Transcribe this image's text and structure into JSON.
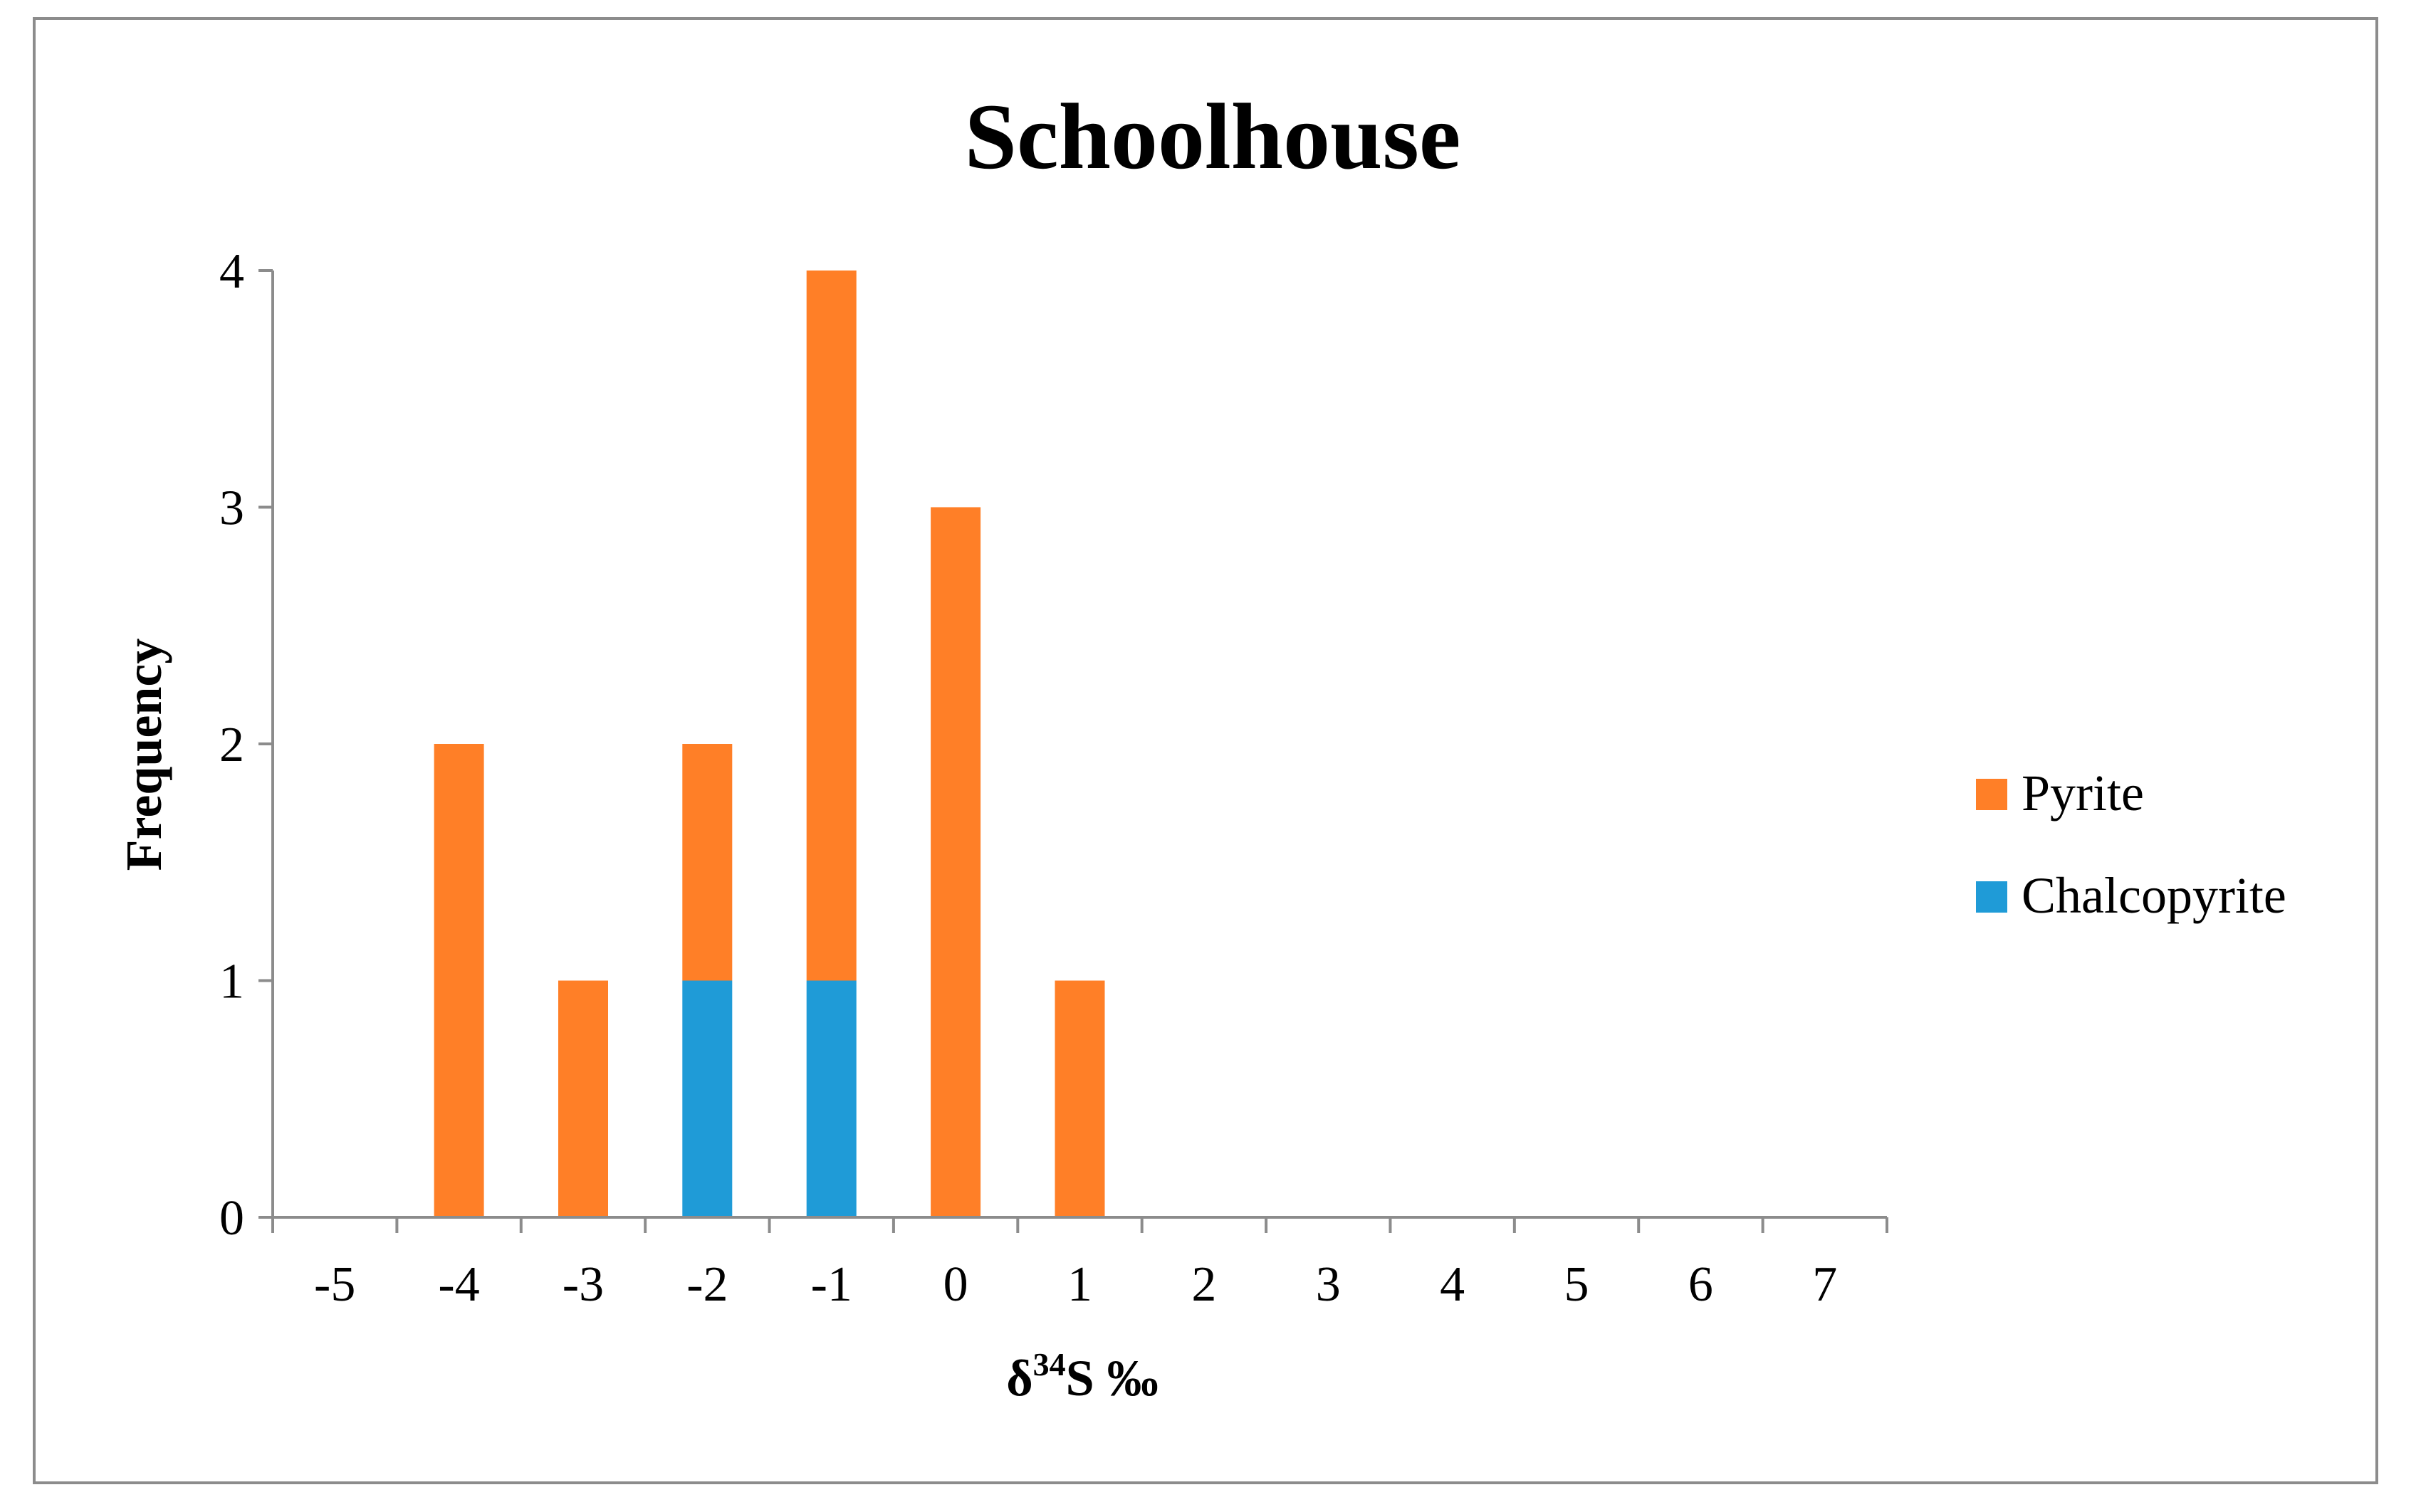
{
  "chart_data": {
    "type": "bar",
    "stacked": true,
    "title": "Schoolhouse",
    "xlabel_main": "δ",
    "xlabel_sup": "34",
    "xlabel_tail": "S ‰",
    "ylabel": "Frequency",
    "categories": [
      "-5",
      "-4",
      "-3",
      "-2",
      "-1",
      "0",
      "1",
      "2",
      "3",
      "4",
      "5",
      "6",
      "7"
    ],
    "series": [
      {
        "name": "Chalcopyrite",
        "color": "#1f9bd7",
        "values": [
          0,
          0,
          0,
          1,
          1,
          0,
          0,
          0,
          0,
          0,
          0,
          0,
          0
        ]
      },
      {
        "name": "Pyrite",
        "color": "#ff7f27",
        "values": [
          0,
          2,
          1,
          1,
          3,
          3,
          1,
          0,
          0,
          0,
          0,
          0,
          0
        ]
      }
    ],
    "legend_order": [
      "Pyrite",
      "Chalcopyrite"
    ],
    "yticks": [
      "0",
      "1",
      "2",
      "3",
      "4"
    ],
    "ylim": [
      0,
      4
    ],
    "grid": false,
    "legend_position": "right"
  }
}
